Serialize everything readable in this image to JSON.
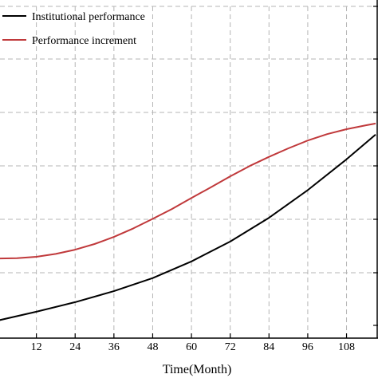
{
  "chart_data": {
    "type": "line",
    "xlabel": "Time(Month)",
    "xticks": [
      12,
      24,
      36,
      48,
      60,
      72,
      84,
      96,
      108
    ],
    "xlim": [
      0,
      117
    ],
    "ylim": [
      0,
      9
    ],
    "grid": true,
    "legend_position": "top-left",
    "series": [
      {
        "name": "Institutional performance",
        "color": "#000000",
        "x": [
          0,
          12,
          24,
          36,
          48,
          60,
          72,
          84,
          96,
          108,
          117
        ],
        "y": [
          0.0,
          0.25,
          0.52,
          0.83,
          1.2,
          1.67,
          2.23,
          2.9,
          3.68,
          4.55,
          5.25
        ]
      },
      {
        "name": "Performance increment",
        "color": "#c0393b",
        "x": [
          0,
          6,
          12,
          18,
          24,
          30,
          36,
          42,
          48,
          54,
          60,
          66,
          72,
          78,
          84,
          90,
          96,
          102,
          108,
          114,
          117
        ],
        "y": [
          1.75,
          1.76,
          1.8,
          1.88,
          2.0,
          2.16,
          2.36,
          2.6,
          2.87,
          3.15,
          3.46,
          3.76,
          4.07,
          4.36,
          4.62,
          4.86,
          5.08,
          5.26,
          5.4,
          5.51,
          5.56
        ]
      }
    ]
  }
}
